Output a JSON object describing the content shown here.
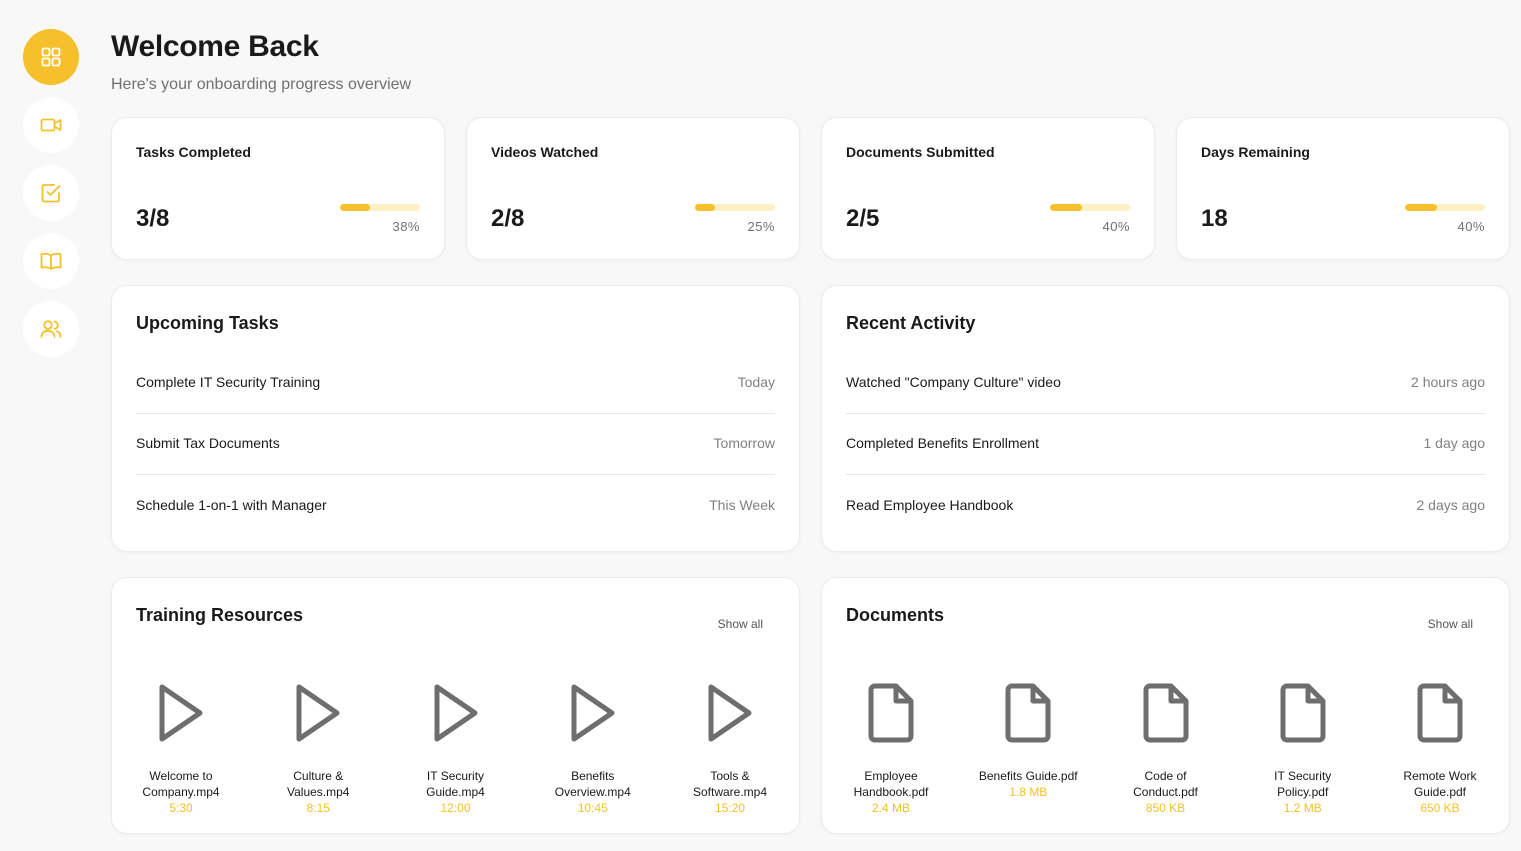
{
  "colors": {
    "accent": "#f5c02c",
    "accent_light": "#fdf0c4",
    "background": "#f8f8f8",
    "card": "#ffffff"
  },
  "sidebar": {
    "items": [
      {
        "name": "dashboard",
        "icon": "grid-icon",
        "active": true
      },
      {
        "name": "videos",
        "icon": "video-icon",
        "active": false
      },
      {
        "name": "tasks",
        "icon": "checkbox-icon",
        "active": false
      },
      {
        "name": "resources",
        "icon": "book-icon",
        "active": false
      },
      {
        "name": "team",
        "icon": "users-icon",
        "active": false
      }
    ]
  },
  "header": {
    "title": "Welcome Back",
    "subtitle": "Here's your onboarding progress overview"
  },
  "stats": [
    {
      "title": "Tasks Completed",
      "value": "3/8",
      "percent": "38%",
      "progress": 0.38
    },
    {
      "title": "Videos Watched",
      "value": "2/8",
      "percent": "25%",
      "progress": 0.25
    },
    {
      "title": "Documents Submitted",
      "value": "2/5",
      "percent": "40%",
      "progress": 0.4
    },
    {
      "title": "Days Remaining",
      "value": "18",
      "percent": "40%",
      "progress": 0.4
    }
  ],
  "upcoming": {
    "title": "Upcoming Tasks",
    "items": [
      {
        "label": "Complete IT Security Training",
        "when": "Today"
      },
      {
        "label": "Submit Tax Documents",
        "when": "Tomorrow"
      },
      {
        "label": "Schedule 1-on-1 with Manager",
        "when": "This Week"
      }
    ]
  },
  "activity": {
    "title": "Recent Activity",
    "items": [
      {
        "label": "Watched \"Company Culture\" video",
        "when": "2 hours ago"
      },
      {
        "label": "Completed Benefits Enrollment",
        "when": "1 day ago"
      },
      {
        "label": "Read Employee Handbook",
        "when": "2 days ago"
      }
    ]
  },
  "training": {
    "title": "Training Resources",
    "show_all": "Show all",
    "items": [
      {
        "name": "Welcome to Company.mp4",
        "meta": "5:30",
        "icon": "play-icon"
      },
      {
        "name": "Culture & Values.mp4",
        "meta": "8:15",
        "icon": "play-icon"
      },
      {
        "name": "IT Security Guide.mp4",
        "meta": "12:00",
        "icon": "play-icon"
      },
      {
        "name": "Benefits Overview.mp4",
        "meta": "10:45",
        "icon": "play-icon"
      },
      {
        "name": "Tools & Software.mp4",
        "meta": "15:20",
        "icon": "play-icon"
      }
    ]
  },
  "documents": {
    "title": "Documents",
    "show_all": "Show all",
    "items": [
      {
        "name": "Employee Handbook.pdf",
        "meta": "2.4 MB",
        "icon": "document-icon"
      },
      {
        "name": "Benefits Guide.pdf",
        "meta": "1.8 MB",
        "icon": "document-icon"
      },
      {
        "name": "Code of Conduct.pdf",
        "meta": "850 KB",
        "icon": "document-icon"
      },
      {
        "name": "IT Security Policy.pdf",
        "meta": "1.2 MB",
        "icon": "document-icon"
      },
      {
        "name": "Remote Work Guide.pdf",
        "meta": "650 KB",
        "icon": "document-icon"
      }
    ]
  }
}
